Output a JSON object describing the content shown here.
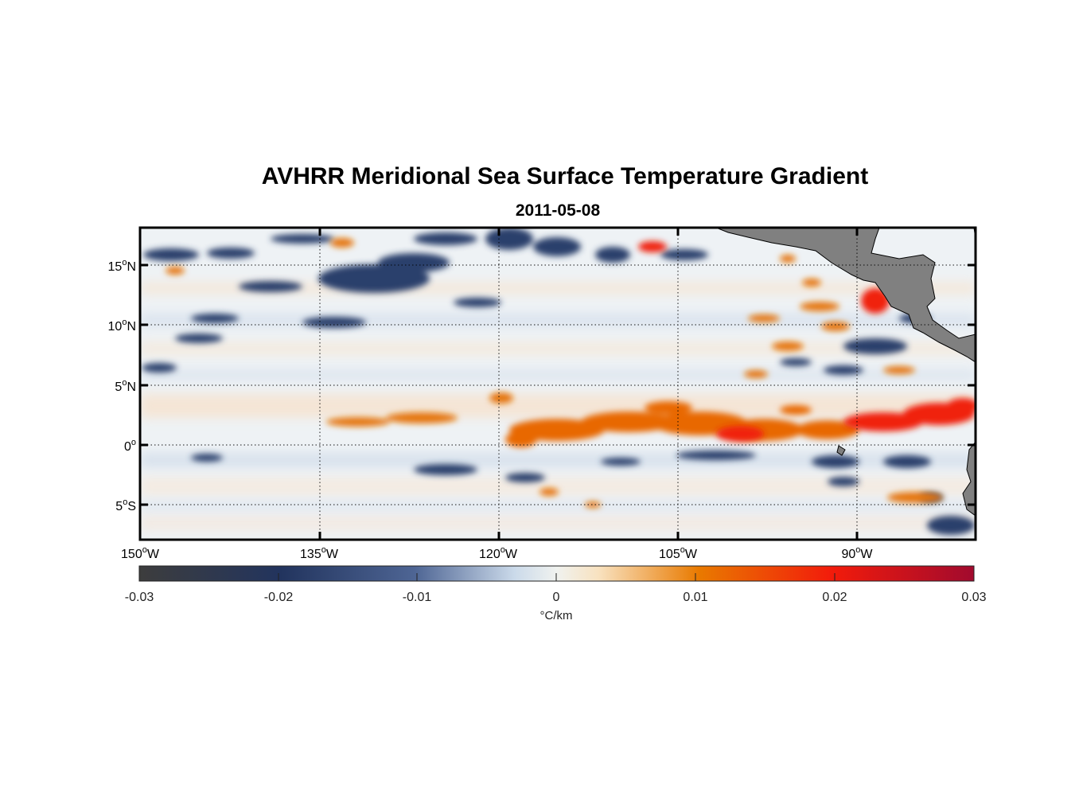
{
  "title": "AVHRR Meridional Sea Surface Temperature Gradient",
  "subtitle": "2011-05-08",
  "map": {
    "lon_range": [
      -150,
      -80
    ],
    "lat_range": [
      -8,
      18
    ],
    "x_ticks": [
      {
        "deg": "150",
        "hem": "W",
        "lon": -150
      },
      {
        "deg": "135",
        "hem": "W",
        "lon": -135
      },
      {
        "deg": "120",
        "hem": "W",
        "lon": -120
      },
      {
        "deg": "105",
        "hem": "W",
        "lon": -105
      },
      {
        "deg": "90",
        "hem": "W",
        "lon": -90
      }
    ],
    "y_ticks": [
      {
        "deg": "15",
        "hem": "N",
        "lat": 15
      },
      {
        "deg": "10",
        "hem": "N",
        "lat": 10
      },
      {
        "deg": "5",
        "hem": "N",
        "lat": 5
      },
      {
        "deg": "0",
        "hem": "",
        "lat": 0
      },
      {
        "deg": "5",
        "hem": "S",
        "lat": -5
      }
    ],
    "grid": "dotted",
    "land_color": "#808080",
    "features": [
      "negative (blue) gradient bands north of 10N",
      "positive (red/orange) band along equator 0-3N from 120W to 80W",
      "negative band just south of equator",
      "strong positive patch near 90W 12N"
    ]
  },
  "colorbar": {
    "label": "°C/km",
    "ticks": [
      "-0.03",
      "-0.02",
      "-0.01",
      "0",
      "0.01",
      "0.02",
      "0.03"
    ],
    "range": [
      -0.03,
      0.03
    ],
    "colors": [
      "#3d3d3d",
      "#22345e",
      "#4e6594",
      "#dfe8f2",
      "#f7e4c8",
      "#e97a00",
      "#f21b0b",
      "#a10a2e"
    ]
  }
}
